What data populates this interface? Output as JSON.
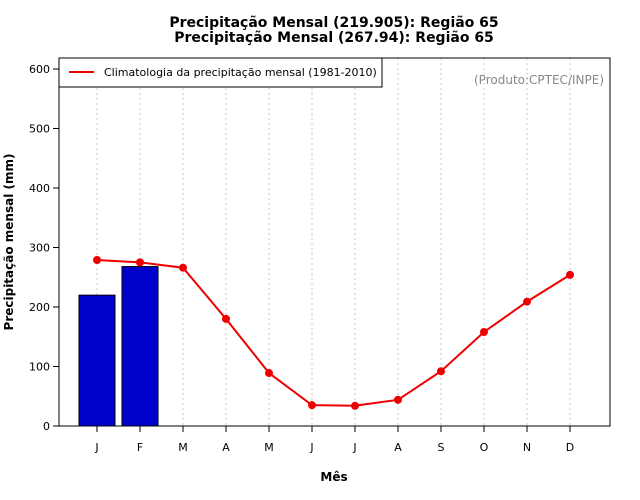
{
  "chart_data": {
    "type": "bar",
    "title_line1": "Precipitação Mensal (219.905): Região 65",
    "title_line2": "Precipitação Mensal (267.94): Região 65",
    "xlabel": "Mês",
    "ylabel": "Precipitação mensal (mm)",
    "credit": "(Produto:CPTEC/INPE)",
    "categories": [
      "J",
      "F",
      "M",
      "A",
      "M",
      "J",
      "J",
      "A",
      "S",
      "O",
      "N",
      "D"
    ],
    "ylim": [
      0,
      600
    ],
    "yticks": [
      0,
      100,
      200,
      300,
      400,
      500,
      600
    ],
    "grid": "vertical-dashed",
    "legend_position": "top-left",
    "bars": {
      "values": [
        219.905,
        267.94
      ],
      "color": "#0000cc"
    },
    "line": {
      "name": "Climatologia da precipitação mensal (1981-2010)",
      "values": [
        279,
        275,
        266,
        180,
        89,
        35,
        34,
        44,
        92,
        158,
        209,
        254
      ],
      "color": "#ee0000"
    }
  }
}
